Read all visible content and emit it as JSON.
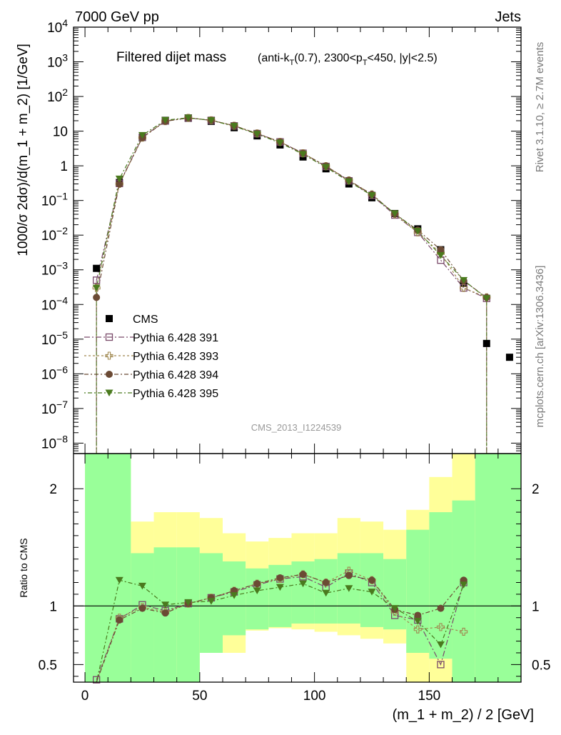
{
  "header": {
    "left": "7000 GeV pp",
    "right": "Jets"
  },
  "side_labels": {
    "rivet": "Rivet 3.1.10, ≥ 2.7M events",
    "mcplots": "mcplots.cern.ch [arXiv:1306.3436]"
  },
  "chart_data": {
    "type": "scatter",
    "title": "Filtered dijet mass",
    "subtitle_parts": [
      "(anti-k",
      "T",
      "(0.7), 2300<p",
      "T",
      "<450, |y|<2.5)"
    ],
    "watermark": "CMS_2013_I1224539",
    "xlabel": "(m_1 + m_2) / 2 [GeV]",
    "ylabel_main": "1000/σ 2dσ)/d(m_1 + m_2) [1/GeV]",
    "ylabel_ratio": "Ratio to CMS",
    "xlim": [
      -5,
      190
    ],
    "ylim_main": [
      5e-09,
      10000
    ],
    "yscale_main": "log",
    "ylim_ratio": [
      0.35,
      2.3
    ],
    "x_ticks": [
      0,
      50,
      100,
      150
    ],
    "main_y_ticks": [
      {
        "v": 10000,
        "m": "10",
        "e": "4"
      },
      {
        "v": 1000,
        "m": "10",
        "e": "3"
      },
      {
        "v": 100,
        "m": "10",
        "e": "2"
      },
      {
        "v": 10,
        "m": "10",
        "e": ""
      },
      {
        "v": 1,
        "m": "1",
        "e": ""
      },
      {
        "v": 0.1,
        "m": "10",
        "e": "−1"
      },
      {
        "v": 0.01,
        "m": "10",
        "e": "−2"
      },
      {
        "v": 0.001,
        "m": "10",
        "e": "−3"
      },
      {
        "v": 0.0001,
        "m": "10",
        "e": "−4"
      },
      {
        "v": 1e-05,
        "m": "10",
        "e": "−5"
      },
      {
        "v": 1e-06,
        "m": "10",
        "e": "−6"
      },
      {
        "v": 1e-07,
        "m": "10",
        "e": "−7"
      },
      {
        "v": 1e-08,
        "m": "10",
        "e": "−8"
      }
    ],
    "ratio_y_ticks": [
      {
        "v": 0.5,
        "label": "0.5"
      },
      {
        "v": 1,
        "label": "1"
      },
      {
        "v": 2,
        "label": "2"
      }
    ],
    "ratio_bands": [
      {
        "x0": 0,
        "x1": 20,
        "y_lo": 0.35,
        "y_hi": 2.3,
        "g_lo": 0.35,
        "g_hi": 2.3
      },
      {
        "x0": 20,
        "x1": 30,
        "y_lo": 0.68,
        "y_hi": 1.72,
        "g_lo": 0.35,
        "g_hi": 1.45
      },
      {
        "x0": 30,
        "x1": 40,
        "y_lo": 0.35,
        "y_hi": 1.8,
        "g_lo": 0.35,
        "g_hi": 1.5
      },
      {
        "x0": 40,
        "x1": 50,
        "y_lo": 0.38,
        "y_hi": 1.8,
        "g_lo": 0.35,
        "g_hi": 1.5
      },
      {
        "x0": 50,
        "x1": 60,
        "y_lo": 0.6,
        "y_hi": 1.75,
        "g_lo": 0.6,
        "g_hi": 1.45
      },
      {
        "x0": 60,
        "x1": 70,
        "y_lo": 0.6,
        "y_hi": 1.62,
        "g_lo": 0.75,
        "g_hi": 1.38
      },
      {
        "x0": 70,
        "x1": 80,
        "y_lo": 0.79,
        "y_hi": 1.55,
        "g_lo": 0.8,
        "g_hi": 1.32
      },
      {
        "x0": 80,
        "x1": 90,
        "y_lo": 0.81,
        "y_hi": 1.58,
        "g_lo": 0.82,
        "g_hi": 1.35
      },
      {
        "x0": 90,
        "x1": 100,
        "y_lo": 0.8,
        "y_hi": 1.62,
        "g_lo": 0.85,
        "g_hi": 1.38
      },
      {
        "x0": 100,
        "x1": 110,
        "y_lo": 0.78,
        "y_hi": 1.62,
        "g_lo": 0.85,
        "g_hi": 1.4
      },
      {
        "x0": 110,
        "x1": 120,
        "y_lo": 0.75,
        "y_hi": 1.75,
        "g_lo": 0.85,
        "g_hi": 1.45
      },
      {
        "x0": 120,
        "x1": 130,
        "y_lo": 0.72,
        "y_hi": 1.72,
        "g_lo": 0.82,
        "g_hi": 1.45
      },
      {
        "x0": 130,
        "x1": 140,
        "y_lo": 0.68,
        "y_hi": 1.65,
        "g_lo": 0.8,
        "g_hi": 1.4
      },
      {
        "x0": 140,
        "x1": 150,
        "y_lo": 0.35,
        "y_hi": 1.82,
        "g_lo": 0.6,
        "g_hi": 1.65
      },
      {
        "x0": 150,
        "x1": 160,
        "y_lo": 0.35,
        "y_hi": 2.1,
        "g_lo": 0.55,
        "g_hi": 1.8
      },
      {
        "x0": 160,
        "x1": 170,
        "y_lo": 0.35,
        "y_hi": 2.3,
        "g_lo": 0.35,
        "g_hi": 1.9
      },
      {
        "x0": 170,
        "x1": 190,
        "y_lo": 0.35,
        "y_hi": 2.3,
        "g_lo": 0.35,
        "g_hi": 2.3
      }
    ],
    "series": [
      {
        "name": "CMS",
        "marker": "filled-square",
        "color": "#000000",
        "x": [
          5,
          15,
          25,
          35,
          45,
          55,
          65,
          75,
          85,
          95,
          105,
          115,
          125,
          135,
          145,
          155,
          165,
          175,
          185
        ],
        "y": [
          0.0011,
          0.33,
          6.6,
          20.5,
          23.5,
          19.2,
          12.6,
          7.3,
          4.0,
          1.8,
          0.82,
          0.3,
          0.12,
          0.042,
          0.0152,
          0.0038,
          0.00041,
          7.5e-06,
          3e-06
        ],
        "ratio": null
      },
      {
        "name": "Pythia 6.428 391",
        "marker": "open-square",
        "color": "#7a4a6a",
        "x": [
          5,
          15,
          25,
          35,
          45,
          55,
          65,
          75,
          85,
          95,
          105,
          115,
          125,
          135,
          145,
          155,
          165,
          175
        ],
        "y": [
          0.0005,
          0.31,
          6.7,
          19.6,
          24.0,
          20.5,
          14.2,
          8.5,
          4.9,
          2.3,
          0.96,
          0.37,
          0.14,
          0.038,
          0.012,
          0.0019,
          0.0003,
          0.00015
        ],
        "ratio": [
          0.37,
          0.89,
          1.01,
          0.96,
          1.02,
          1.07,
          1.12,
          1.18,
          1.23,
          1.25,
          1.16,
          1.28,
          1.2,
          0.92,
          0.88,
          0.5,
          1.2,
          null
        ]
      },
      {
        "name": "Pythia 6.428 393",
        "marker": "open-cross",
        "color": "#a08850",
        "x": [
          5,
          15,
          25,
          35,
          45,
          55,
          65,
          75,
          85,
          95,
          105,
          115,
          125,
          135,
          145,
          155,
          165,
          175
        ],
        "y": [
          0.0003,
          0.3,
          6.5,
          19.4,
          24.1,
          20.6,
          14.3,
          8.6,
          4.9,
          2.3,
          0.98,
          0.38,
          0.15,
          0.04,
          0.012,
          0.003,
          0.0003,
          0.00016
        ],
        "ratio": [
          0.28,
          0.9,
          0.99,
          0.95,
          1.02,
          1.07,
          1.13,
          1.19,
          1.23,
          1.27,
          1.2,
          1.3,
          1.22,
          0.95,
          0.8,
          0.82,
          0.78,
          null
        ]
      },
      {
        "name": "Pythia 6.428 394",
        "marker": "filled-circle",
        "color": "#6b4a34",
        "x": [
          5,
          15,
          25,
          35,
          45,
          55,
          65,
          75,
          85,
          95,
          105,
          115,
          125,
          135,
          145,
          155,
          165,
          175
        ],
        "y": [
          0.00016,
          0.3,
          6.5,
          19.3,
          24.0,
          20.6,
          14.4,
          8.6,
          4.9,
          2.3,
          0.98,
          0.38,
          0.15,
          0.041,
          0.014,
          0.0038,
          0.00048,
          0.00016
        ],
        "ratio": [
          0.2,
          0.88,
          0.98,
          0.94,
          1.02,
          1.07,
          1.13,
          1.19,
          1.24,
          1.27,
          1.2,
          1.26,
          1.22,
          0.97,
          0.92,
          0.98,
          1.22,
          null
        ]
      },
      {
        "name": "Pythia 6.428 395",
        "marker": "filled-triangle-down",
        "color": "#4a7a1e",
        "x": [
          5,
          15,
          25,
          35,
          45,
          55,
          65,
          75,
          85,
          95,
          105,
          115,
          125,
          135,
          145,
          155,
          165,
          175
        ],
        "y": [
          0.0003,
          0.42,
          7.6,
          20.7,
          24.3,
          20.4,
          13.9,
          8.2,
          4.6,
          2.15,
          0.91,
          0.35,
          0.14,
          0.042,
          0.013,
          0.0026,
          0.0005,
          0.00015
        ],
        "ratio": [
          0.25,
          1.22,
          1.17,
          1.01,
          1.03,
          1.04,
          1.09,
          1.13,
          1.16,
          1.19,
          1.11,
          1.15,
          1.12,
          0.98,
          0.87,
          0.67,
          1.18,
          null
        ]
      }
    ]
  }
}
